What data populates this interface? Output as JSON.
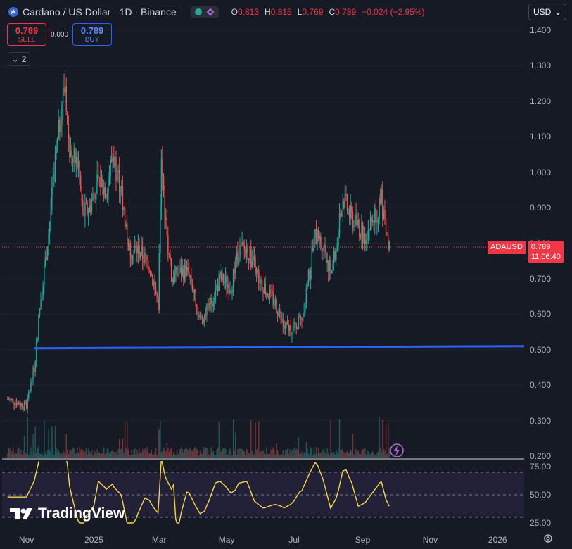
{
  "header": {
    "symbol_icon": "cardano-coin-icon",
    "title": "Cardano / US Dollar · 1D · Binance",
    "ohlc": {
      "o_label": "O",
      "o": "0.813",
      "h_label": "H",
      "h": "0.815",
      "l_label": "L",
      "l": "0.769",
      "c_label": "C",
      "c": "0.789",
      "change": "−0.024 (−2.95%)"
    }
  },
  "trade": {
    "sell_price": "0.789",
    "sell_label": "SELL",
    "spread": "0.000",
    "buy_price": "0.789",
    "buy_label": "BUY"
  },
  "indicators_toggle": {
    "count": "2"
  },
  "currency": {
    "value": "USD"
  },
  "price_label": {
    "symbol": "ADAUSD",
    "price": "0.789",
    "countdown": "11:06:40"
  },
  "yaxis": {
    "ticks": [
      "1.400",
      "1.300",
      "1.200",
      "1.100",
      "1.000",
      "0.900",
      "0.800",
      "0.700",
      "0.600",
      "0.500",
      "0.400",
      "0.300",
      "0.200"
    ]
  },
  "rsi_axis": {
    "ticks": [
      "75.00",
      "50.00",
      "25.00"
    ]
  },
  "xaxis": {
    "ticks": [
      "Nov",
      "2025",
      "Mar",
      "May",
      "Jul",
      "Sep",
      "Nov",
      "2026"
    ]
  },
  "brand": {
    "name": "TradingView"
  },
  "colors": {
    "up": "#26a69a",
    "down": "#ef5350",
    "trendline": "#2962ff",
    "rsi": "#7e57c2",
    "rsi_ma": "#f7d64a",
    "bg": "#161a25"
  },
  "chart_data": {
    "type": "candlestick",
    "interval": "1D",
    "ylim": [
      0.2,
      1.4
    ],
    "points": [
      [
        "2024-10-15",
        0.36
      ],
      [
        "2024-11-01",
        0.34
      ],
      [
        "2024-11-08",
        0.45
      ],
      [
        "2024-11-14",
        0.65
      ],
      [
        "2024-11-20",
        0.8
      ],
      [
        "2024-11-28",
        1.05
      ],
      [
        "2024-12-03",
        1.2
      ],
      [
        "2024-12-06",
        1.25
      ],
      [
        "2024-12-10",
        1.05
      ],
      [
        "2024-12-18",
        1.02
      ],
      [
        "2024-12-22",
        0.88
      ],
      [
        "2024-12-28",
        0.9
      ],
      [
        "2025-01-05",
        0.98
      ],
      [
        "2025-01-12",
        0.95
      ],
      [
        "2025-01-18",
        1.05
      ],
      [
        "2025-01-25",
        0.96
      ],
      [
        "2025-02-02",
        0.78
      ],
      [
        "2025-02-10",
        0.78
      ],
      [
        "2025-02-20",
        0.74
      ],
      [
        "2025-02-28",
        0.63
      ],
      [
        "2025-03-03",
        1.02
      ],
      [
        "2025-03-07",
        0.85
      ],
      [
        "2025-03-12",
        0.7
      ],
      [
        "2025-03-20",
        0.72
      ],
      [
        "2025-03-28",
        0.72
      ],
      [
        "2025-04-07",
        0.58
      ],
      [
        "2025-04-15",
        0.62
      ],
      [
        "2025-04-25",
        0.7
      ],
      [
        "2025-05-05",
        0.68
      ],
      [
        "2025-05-12",
        0.78
      ],
      [
        "2025-05-20",
        0.78
      ],
      [
        "2025-05-28",
        0.72
      ],
      [
        "2025-06-05",
        0.67
      ],
      [
        "2025-06-14",
        0.63
      ],
      [
        "2025-06-22",
        0.56
      ],
      [
        "2025-07-01",
        0.56
      ],
      [
        "2025-07-08",
        0.59
      ],
      [
        "2025-07-15",
        0.72
      ],
      [
        "2025-07-20",
        0.82
      ],
      [
        "2025-07-27",
        0.8
      ],
      [
        "2025-08-03",
        0.72
      ],
      [
        "2025-08-08",
        0.78
      ],
      [
        "2025-08-14",
        0.93
      ],
      [
        "2025-08-20",
        0.88
      ],
      [
        "2025-08-27",
        0.85
      ],
      [
        "2025-09-03",
        0.82
      ],
      [
        "2025-09-12",
        0.88
      ],
      [
        "2025-09-18",
        0.92
      ],
      [
        "2025-09-22",
        0.82
      ],
      [
        "2025-09-25",
        0.789
      ]
    ],
    "support_line": {
      "from": [
        "2024-11-08",
        0.504
      ],
      "to": [
        "2026-01-15",
        0.51
      ]
    },
    "rsi": {
      "levels": [
        70,
        50,
        30
      ],
      "ylim": [
        20,
        80
      ]
    }
  }
}
